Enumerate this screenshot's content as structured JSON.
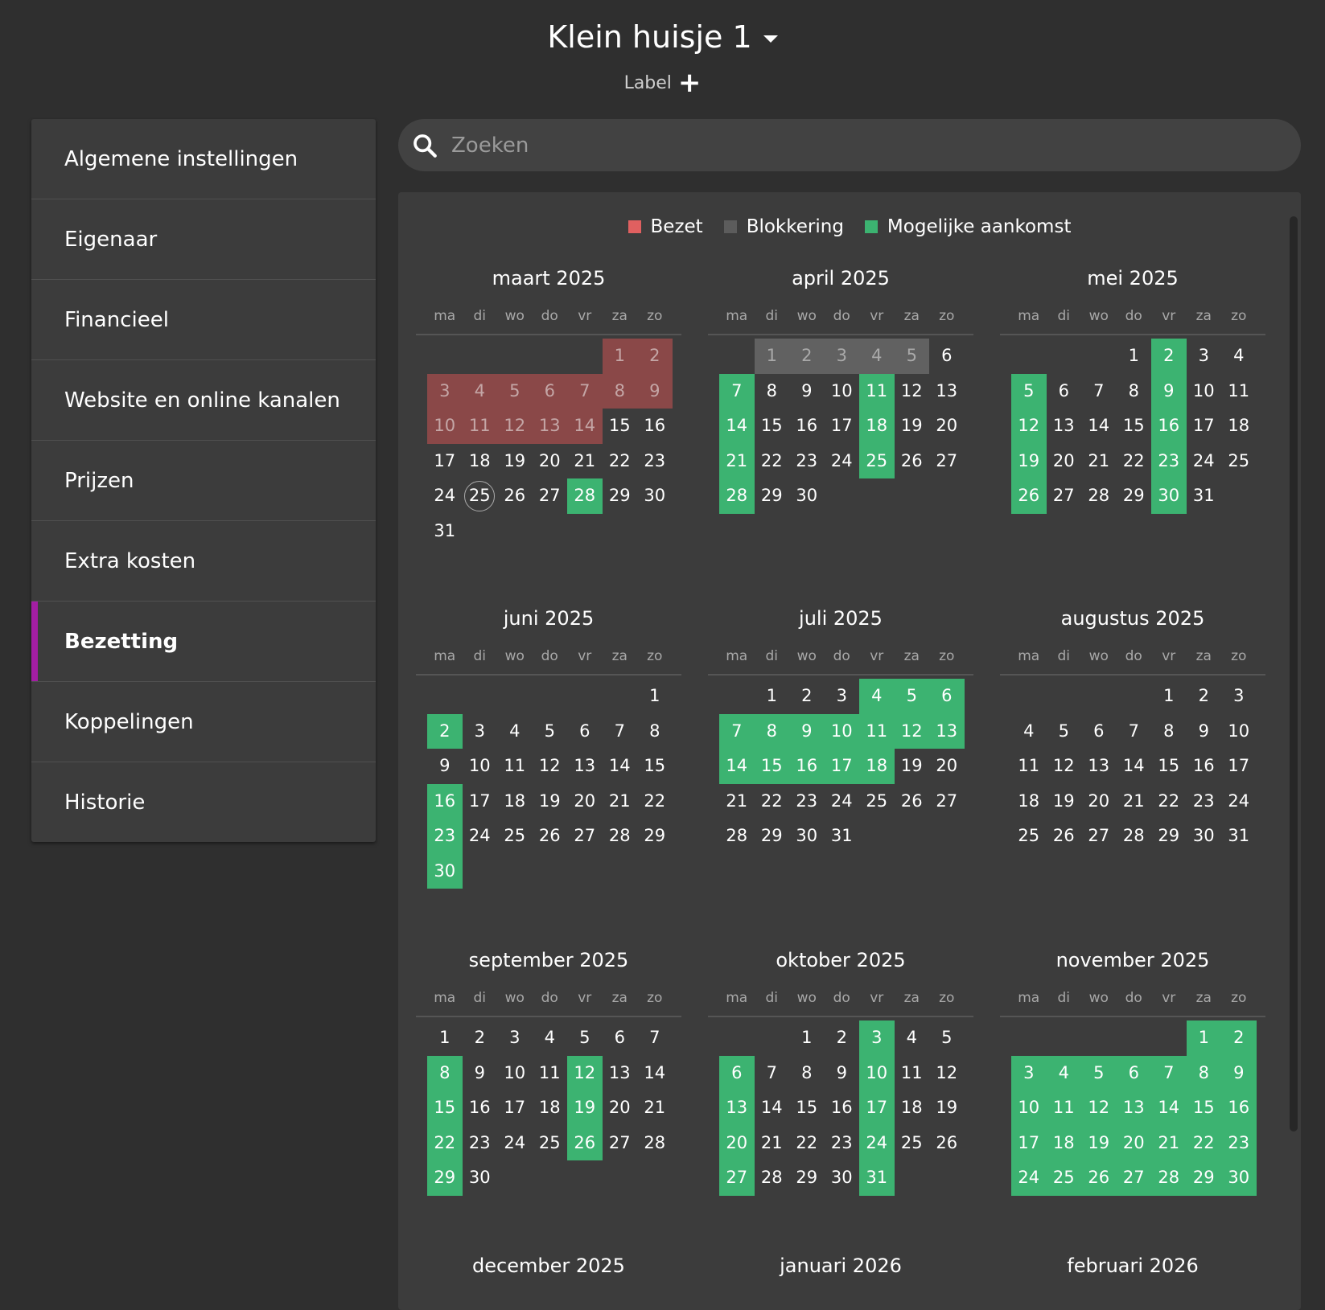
{
  "header": {
    "title": "Klein huisje 1",
    "label": "Label"
  },
  "sidebar": {
    "items": [
      {
        "label": "Algemene instellingen"
      },
      {
        "label": "Eigenaar"
      },
      {
        "label": "Financieel"
      },
      {
        "label": "Website en online kanalen"
      },
      {
        "label": "Prijzen"
      },
      {
        "label": "Extra kosten"
      },
      {
        "label": "Bezetting",
        "active": true
      },
      {
        "label": "Koppelingen"
      },
      {
        "label": "Historie"
      }
    ]
  },
  "search": {
    "placeholder": "Zoeken"
  },
  "legend": [
    {
      "label": "Bezet",
      "color": "#e06060"
    },
    {
      "label": "Blokkering",
      "color": "#5c5c5c"
    },
    {
      "label": "Mogelijke aankomst",
      "color": "#3cb371"
    }
  ],
  "weekdays": [
    "ma",
    "di",
    "wo",
    "do",
    "vr",
    "za",
    "zo"
  ],
  "colors": {
    "bezet": "#8a4848",
    "blokkering": "#616161",
    "available": "#3cb371",
    "accent": "#a31ea3"
  },
  "today": {
    "month": "maart 2025",
    "day": 25
  },
  "months": [
    {
      "name": "maart 2025",
      "start_weekday": 5,
      "days": 31,
      "bezet": [
        1,
        2,
        3,
        4,
        5,
        6,
        7,
        8,
        9,
        10,
        11,
        12,
        13,
        14
      ],
      "blok": [],
      "available": [
        28
      ]
    },
    {
      "name": "april 2025",
      "start_weekday": 1,
      "days": 30,
      "bezet": [],
      "blok": [
        1,
        2,
        3,
        4,
        5
      ],
      "available": [
        7,
        11,
        14,
        18,
        21,
        25,
        28
      ]
    },
    {
      "name": "mei 2025",
      "start_weekday": 3,
      "days": 31,
      "bezet": [],
      "blok": [],
      "available": [
        2,
        5,
        9,
        12,
        16,
        19,
        23,
        26,
        30
      ]
    },
    {
      "name": "juni 2025",
      "start_weekday": 6,
      "days": 30,
      "bezet": [],
      "blok": [],
      "available": [
        2,
        16,
        23,
        30
      ]
    },
    {
      "name": "juli 2025",
      "start_weekday": 1,
      "days": 31,
      "bezet": [],
      "blok": [],
      "available": [
        4,
        5,
        6,
        7,
        8,
        9,
        10,
        11,
        12,
        13,
        14,
        15,
        16,
        17,
        18
      ]
    },
    {
      "name": "augustus 2025",
      "start_weekday": 4,
      "days": 31,
      "bezet": [],
      "blok": [],
      "available": []
    },
    {
      "name": "september 2025",
      "start_weekday": 0,
      "days": 30,
      "bezet": [],
      "blok": [],
      "available": [
        8,
        12,
        15,
        19,
        22,
        26,
        29
      ]
    },
    {
      "name": "oktober 2025",
      "start_weekday": 2,
      "days": 31,
      "bezet": [],
      "blok": [],
      "available": [
        3,
        6,
        10,
        13,
        17,
        20,
        24,
        27,
        31
      ]
    },
    {
      "name": "november 2025",
      "start_weekday": 5,
      "days": 30,
      "bezet": [],
      "blok": [],
      "available": [
        1,
        2,
        3,
        4,
        5,
        6,
        7,
        8,
        9,
        10,
        11,
        12,
        13,
        14,
        15,
        16,
        17,
        18,
        19,
        20,
        21,
        22,
        23,
        24,
        25,
        26,
        27,
        28,
        29,
        30
      ]
    },
    {
      "name": "december 2025",
      "title_only": true
    },
    {
      "name": "januari 2026",
      "title_only": true
    },
    {
      "name": "februari 2026",
      "title_only": true
    }
  ]
}
